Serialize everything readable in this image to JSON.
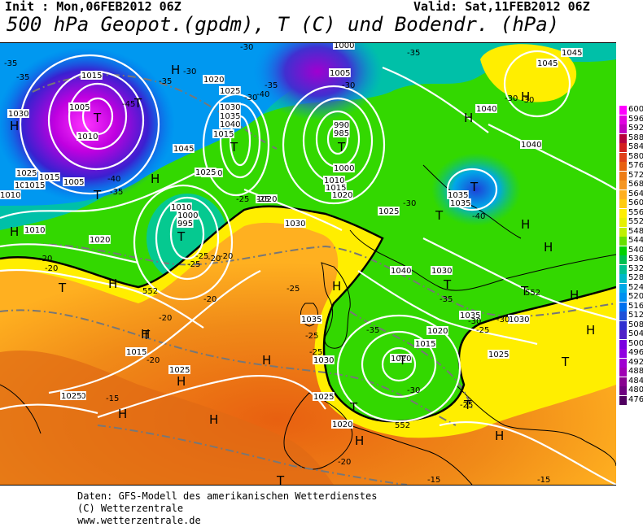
{
  "header": {
    "init": "Init : Mon,06FEB2012 06Z",
    "valid": "Valid: Sat,11FEB2012 06Z",
    "title": "500 hPa Geopot.(gpdm), T (C) und Bodendr. (hPa)"
  },
  "footer": {
    "line1": "Daten: GFS-Modell des amerikanischen Wetterdienstes",
    "line2": "(C) Wetterzentrale",
    "line3": "www.wetterzentrale.de"
  },
  "legend": {
    "levels": [
      "600",
      "596",
      "592",
      "588",
      "584",
      "580",
      "576",
      "572",
      "568",
      "564",
      "560",
      "556",
      "552",
      "548",
      "544",
      "540",
      "536",
      "532",
      "528",
      "524",
      "520",
      "516",
      "512",
      "508",
      "504",
      "500",
      "496",
      "492",
      "488",
      "484",
      "480",
      "476"
    ],
    "colors": [
      "#ff00ff",
      "#e000e0",
      "#c000c0",
      "#b5003c",
      "#d21e1e",
      "#e04018",
      "#e86010",
      "#ee7c14",
      "#f59622",
      "#ffb020",
      "#ffcc10",
      "#ffee00",
      "#e6f000",
      "#bff000",
      "#66e000",
      "#00d200",
      "#00c050",
      "#00c090",
      "#00b8c8",
      "#00a8e8",
      "#0090f0",
      "#0070ee",
      "#1e50d8",
      "#3030d0",
      "#5020c8",
      "#7a00e0",
      "#9000e0",
      "#a000d0",
      "#a000b4",
      "#880090",
      "#6e0080",
      "#500060"
    ]
  },
  "map": {
    "pressure_centers": [
      {
        "type": "H"
      },
      {
        "type": "H"
      },
      {
        "type": "H"
      },
      {
        "type": "H"
      },
      {
        "type": "H"
      },
      {
        "type": "H"
      },
      {
        "type": "H"
      },
      {
        "type": "H"
      },
      {
        "type": "H"
      },
      {
        "type": "H"
      },
      {
        "type": "H"
      },
      {
        "type": "H"
      },
      {
        "type": "H"
      },
      {
        "type": "H"
      },
      {
        "type": "H"
      },
      {
        "type": "H"
      },
      {
        "type": "H"
      },
      {
        "type": "H"
      },
      {
        "type": "H"
      },
      {
        "type": "T"
      },
      {
        "type": "T"
      },
      {
        "type": "T"
      },
      {
        "type": "T"
      },
      {
        "type": "T"
      },
      {
        "type": "T"
      },
      {
        "type": "T"
      },
      {
        "type": "T"
      },
      {
        "type": "T"
      },
      {
        "type": "T"
      },
      {
        "type": "T"
      },
      {
        "type": "T"
      },
      {
        "type": "T"
      },
      {
        "type": "T"
      },
      {
        "type": "T"
      },
      {
        "type": "T"
      },
      {
        "type": "T"
      },
      {
        "type": "T"
      }
    ],
    "isobar_labels": [
      "1030",
      "1025",
      "1020",
      "1015",
      "1010",
      "1010",
      "1005",
      "1015",
      "1020",
      "1025",
      "1030",
      "1035",
      "1040",
      "1045",
      "1015",
      "1020",
      "1000",
      "1005",
      "990",
      "985",
      "1000",
      "1010",
      "1015",
      "1020",
      "1025",
      "1035",
      "1035",
      "1040",
      "1040",
      "1045",
      "1045",
      "1010",
      "1000",
      "995",
      "1005",
      "1020",
      "1025",
      "1030",
      "1040",
      "1030",
      "1035",
      "1030",
      "1020",
      "1025",
      "1025",
      "1030",
      "1035",
      "1025",
      "1010",
      "1015",
      "1020",
      "1015",
      "1020",
      "1025",
      "1010",
      "1015",
      "1020"
    ],
    "temperature_labels": [
      "-35",
      "-35",
      "-45",
      "-30",
      "-35",
      "-40",
      "-40",
      "-35",
      "-30",
      "-30",
      "-35",
      "-30",
      "-30",
      "-35",
      "-30",
      "-25",
      "-25",
      "-20",
      "-20",
      "-20",
      "-20",
      "-20",
      "-20",
      "-25",
      "-25",
      "-25",
      "-25",
      "-35",
      "-30",
      "-30",
      "-30",
      "-25",
      "-25",
      "-25",
      "-20",
      "-20",
      "-15",
      "-15",
      "-15",
      "-40",
      "-35",
      "-30"
    ],
    "contour_labels": [
      "552",
      "552",
      "552"
    ]
  }
}
